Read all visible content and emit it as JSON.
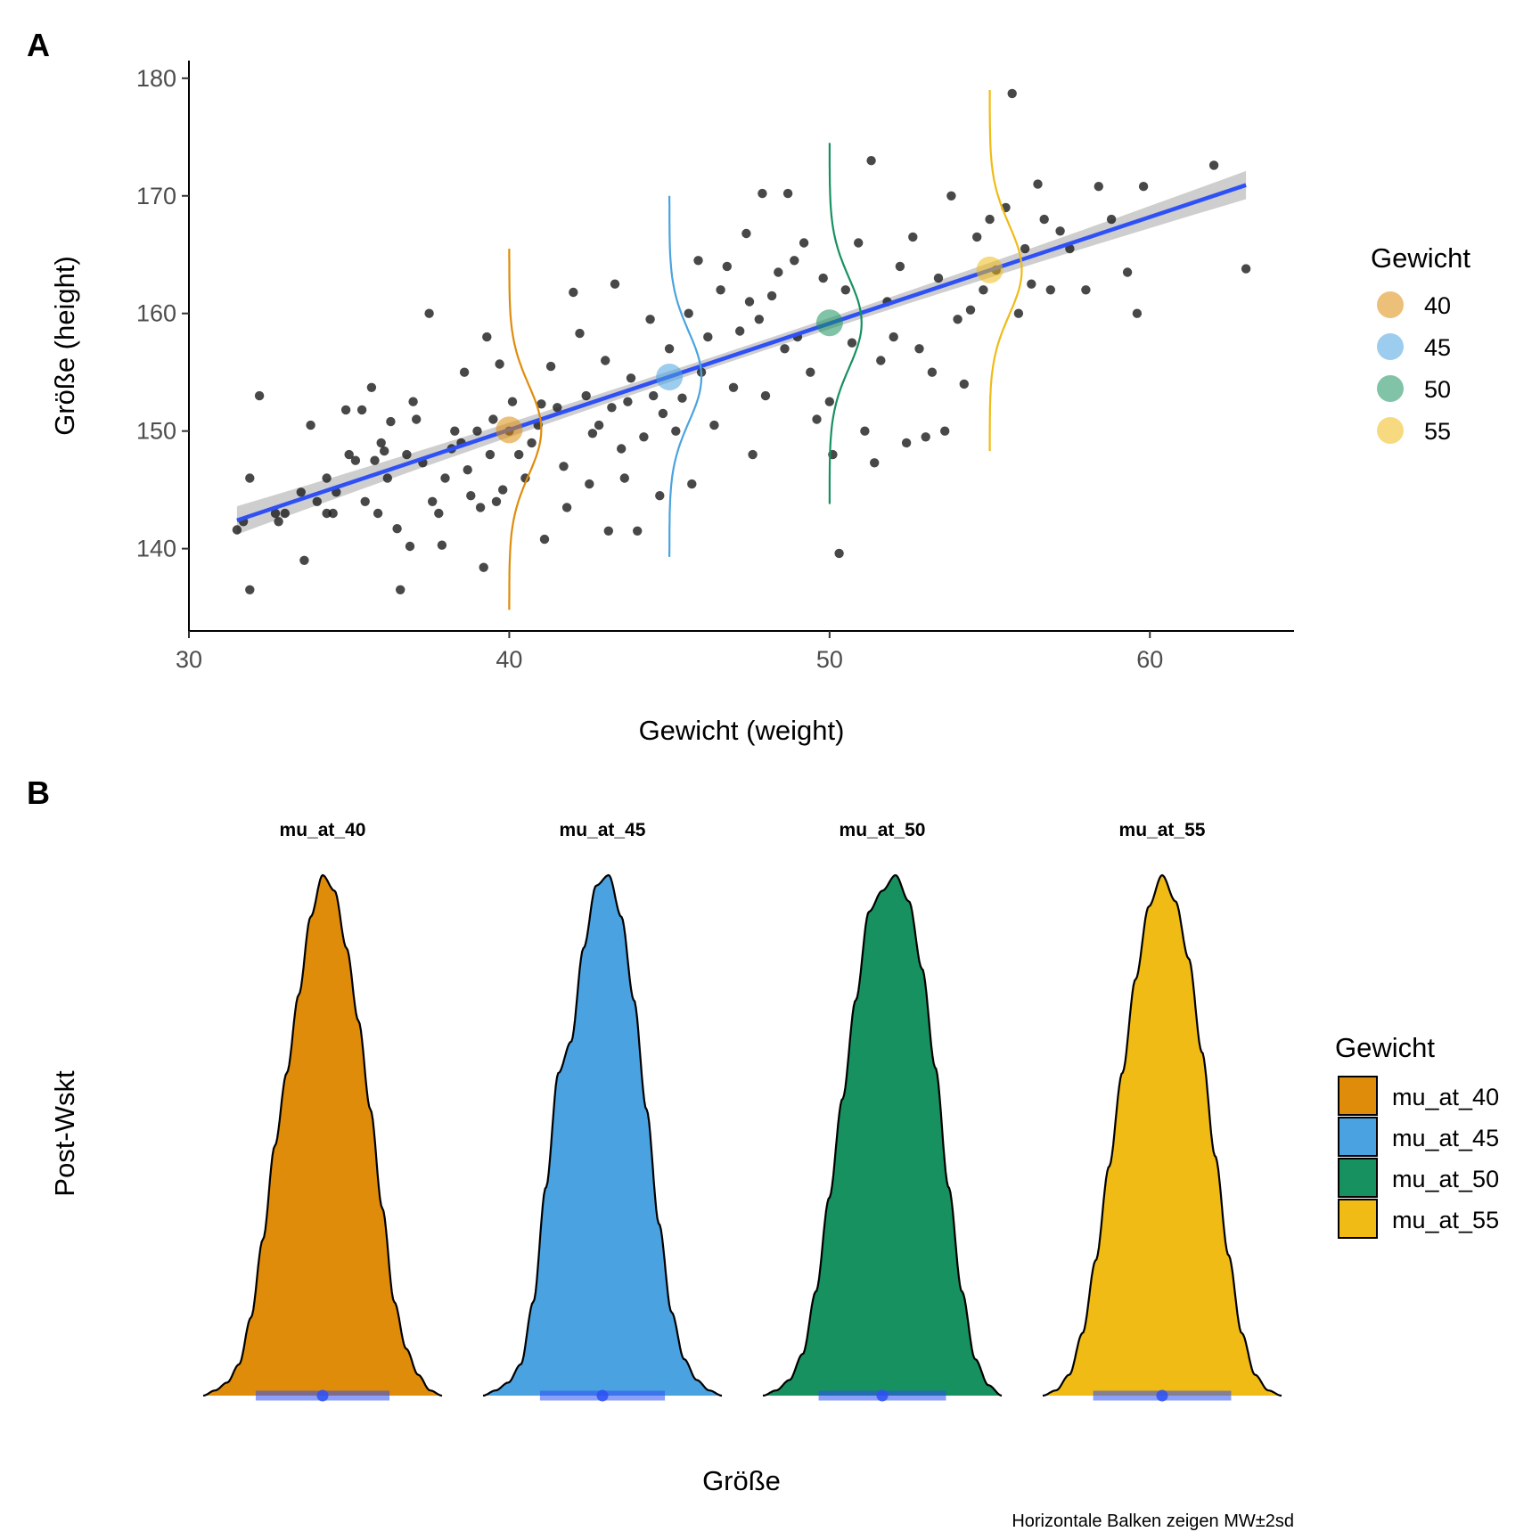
{
  "panel_a": {
    "letter": "A",
    "xlabel": "Gewicht (weight)",
    "ylabel": "Größe (height)",
    "legend_title": "Gewicht"
  },
  "panel_b": {
    "letter": "B",
    "xlabel": "Größe",
    "ylabel": "Post-Wskt",
    "legend_title": "Gewicht",
    "caption": "Horizontale Balken zeigen MW±2sd"
  },
  "colors": {
    "mu_40": "#DF8C0B",
    "mu_45": "#4AA3E0",
    "mu_50": "#17915F",
    "mu_55": "#F0BB15",
    "regression": "#2E50F5",
    "ribbon": "#BEBEBE",
    "points": "#1a1a1a"
  },
  "chart_data": [
    {
      "type": "scatter",
      "panel": "A",
      "xlabel": "Gewicht (weight)",
      "ylabel": "Größe (height)",
      "xlim": [
        30,
        64.5
      ],
      "ylim": [
        133,
        181.5
      ],
      "xticks": [
        30,
        40,
        50,
        60
      ],
      "yticks": [
        140,
        150,
        160,
        170,
        180
      ],
      "legend": {
        "title": "Gewicht",
        "position": "right",
        "entries": [
          "40",
          "45",
          "50",
          "55"
        ]
      },
      "regression": {
        "intercept": 113.9,
        "slope": 0.905,
        "x_range": [
          31.5,
          63.0
        ],
        "ci_halfwidth_ends": 1.2,
        "ci_halfwidth_center": 0.45
      },
      "mu_points": [
        {
          "weight": 40,
          "height": 150.1
        },
        {
          "weight": 45,
          "height": 154.6
        },
        {
          "weight": 50,
          "height": 159.2
        },
        {
          "weight": 55,
          "height": 163.7
        }
      ],
      "likelihood_curves": [
        {
          "weight": 40,
          "center": 150.1,
          "ymin": 134.8,
          "ymax": 165.5
        },
        {
          "weight": 45,
          "center": 154.6,
          "ymin": 139.3,
          "ymax": 170.0
        },
        {
          "weight": 50,
          "center": 159.2,
          "ymin": 143.8,
          "ymax": 174.5
        },
        {
          "weight": 55,
          "center": 163.7,
          "ymin": 148.3,
          "ymax": 179.0
        }
      ],
      "points": [
        [
          31.5,
          141.6
        ],
        [
          31.7,
          142.3
        ],
        [
          31.9,
          136.5
        ],
        [
          31.9,
          146.0
        ],
        [
          32.2,
          153.0
        ],
        [
          32.7,
          143.0
        ],
        [
          32.8,
          142.3
        ],
        [
          33.0,
          143.0
        ],
        [
          33.5,
          144.8
        ],
        [
          33.6,
          139.0
        ],
        [
          33.8,
          150.5
        ],
        [
          34.0,
          144.0
        ],
        [
          34.3,
          146.0
        ],
        [
          34.3,
          143.0
        ],
        [
          34.5,
          143.0
        ],
        [
          34.6,
          144.8
        ],
        [
          34.9,
          151.8
        ],
        [
          35.0,
          148.0
        ],
        [
          35.2,
          147.5
        ],
        [
          35.4,
          151.8
        ],
        [
          35.5,
          144.0
        ],
        [
          35.7,
          153.7
        ],
        [
          35.8,
          147.5
        ],
        [
          35.9,
          143.0
        ],
        [
          36.0,
          149.0
        ],
        [
          36.1,
          148.3
        ],
        [
          36.2,
          146.0
        ],
        [
          36.3,
          150.8
        ],
        [
          36.5,
          141.7
        ],
        [
          36.6,
          136.5
        ],
        [
          36.8,
          148.0
        ],
        [
          36.9,
          140.2
        ],
        [
          37.0,
          152.5
        ],
        [
          37.1,
          151.0
        ],
        [
          37.3,
          147.3
        ],
        [
          37.5,
          160.0
        ],
        [
          37.6,
          144.0
        ],
        [
          37.8,
          143.0
        ],
        [
          37.9,
          140.3
        ],
        [
          38.0,
          146.0
        ],
        [
          38.2,
          148.5
        ],
        [
          38.3,
          150.0
        ],
        [
          38.5,
          149.0
        ],
        [
          38.6,
          155.0
        ],
        [
          38.7,
          146.7
        ],
        [
          38.8,
          144.5
        ],
        [
          39.0,
          150.0
        ],
        [
          39.1,
          143.5
        ],
        [
          39.2,
          138.4
        ],
        [
          39.3,
          158.0
        ],
        [
          39.4,
          148.0
        ],
        [
          39.5,
          151.0
        ],
        [
          39.6,
          144.0
        ],
        [
          39.7,
          155.7
        ],
        [
          39.8,
          145.0
        ],
        [
          40.0,
          150.0
        ],
        [
          40.1,
          152.5
        ],
        [
          40.3,
          148.0
        ],
        [
          40.5,
          146.0
        ],
        [
          40.7,
          149.0
        ],
        [
          40.9,
          150.5
        ],
        [
          41.0,
          152.3
        ],
        [
          41.1,
          140.8
        ],
        [
          41.3,
          155.5
        ],
        [
          41.5,
          152.0
        ],
        [
          41.7,
          147.0
        ],
        [
          41.8,
          143.5
        ],
        [
          42.0,
          161.8
        ],
        [
          42.2,
          158.3
        ],
        [
          42.4,
          153.0
        ],
        [
          42.5,
          145.5
        ],
        [
          42.6,
          149.8
        ],
        [
          42.8,
          150.5
        ],
        [
          43.0,
          156.0
        ],
        [
          43.1,
          141.5
        ],
        [
          43.2,
          152.0
        ],
        [
          43.3,
          162.5
        ],
        [
          43.5,
          148.5
        ],
        [
          43.6,
          146.0
        ],
        [
          43.7,
          152.5
        ],
        [
          43.8,
          154.5
        ],
        [
          44.0,
          141.5
        ],
        [
          44.2,
          149.5
        ],
        [
          44.4,
          159.5
        ],
        [
          44.5,
          153.0
        ],
        [
          44.7,
          144.5
        ],
        [
          44.8,
          151.5
        ],
        [
          45.0,
          157.0
        ],
        [
          45.2,
          150.0
        ],
        [
          45.4,
          152.8
        ],
        [
          45.6,
          160.0
        ],
        [
          45.7,
          145.5
        ],
        [
          45.9,
          164.5
        ],
        [
          46.0,
          155.0
        ],
        [
          46.2,
          158.0
        ],
        [
          46.4,
          150.5
        ],
        [
          46.6,
          162.0
        ],
        [
          46.8,
          164.0
        ],
        [
          47.0,
          153.7
        ],
        [
          47.2,
          158.5
        ],
        [
          47.4,
          166.8
        ],
        [
          47.5,
          161.0
        ],
        [
          47.6,
          148.0
        ],
        [
          47.8,
          159.5
        ],
        [
          47.9,
          170.2
        ],
        [
          48.0,
          153.0
        ],
        [
          48.2,
          161.5
        ],
        [
          48.4,
          163.5
        ],
        [
          48.6,
          157.0
        ],
        [
          48.7,
          170.2
        ],
        [
          48.9,
          164.5
        ],
        [
          49.0,
          158.0
        ],
        [
          49.2,
          166.0
        ],
        [
          49.4,
          155.0
        ],
        [
          49.6,
          151.0
        ],
        [
          49.8,
          163.0
        ],
        [
          50.0,
          152.5
        ],
        [
          50.1,
          148.0
        ],
        [
          50.3,
          139.6
        ],
        [
          50.5,
          162.0
        ],
        [
          50.7,
          157.5
        ],
        [
          50.9,
          166.0
        ],
        [
          51.1,
          150.0
        ],
        [
          51.3,
          173.0
        ],
        [
          51.4,
          147.3
        ],
        [
          51.6,
          156.0
        ],
        [
          51.8,
          161.0
        ],
        [
          52.0,
          158.0
        ],
        [
          52.2,
          164.0
        ],
        [
          52.4,
          149.0
        ],
        [
          52.6,
          166.5
        ],
        [
          52.8,
          157.0
        ],
        [
          53.0,
          149.5
        ],
        [
          53.2,
          155.0
        ],
        [
          53.4,
          163.0
        ],
        [
          53.6,
          150.0
        ],
        [
          53.8,
          170.0
        ],
        [
          54.0,
          159.5
        ],
        [
          54.2,
          154.0
        ],
        [
          54.4,
          160.3
        ],
        [
          54.6,
          166.5
        ],
        [
          54.8,
          162.0
        ],
        [
          55.0,
          168.0
        ],
        [
          55.2,
          163.7
        ],
        [
          55.5,
          169.0
        ],
        [
          55.7,
          178.7
        ],
        [
          55.9,
          160.0
        ],
        [
          56.1,
          165.5
        ],
        [
          56.3,
          162.5
        ],
        [
          56.5,
          171.0
        ],
        [
          56.7,
          168.0
        ],
        [
          56.9,
          162.0
        ],
        [
          57.2,
          167.0
        ],
        [
          57.5,
          165.5
        ],
        [
          58.0,
          162.0
        ],
        [
          58.4,
          170.8
        ],
        [
          58.8,
          168.0
        ],
        [
          59.3,
          163.5
        ],
        [
          59.6,
          160.0
        ],
        [
          59.8,
          170.8
        ],
        [
          62.0,
          172.6
        ],
        [
          63.0,
          163.8
        ]
      ]
    },
    {
      "type": "area",
      "panel": "B",
      "xlabel": "Größe",
      "ylabel": "Post-Wskt",
      "legend": {
        "title": "Gewicht",
        "position": "right",
        "entries": [
          "mu_at_40",
          "mu_at_45",
          "mu_at_50",
          "mu_at_55"
        ]
      },
      "facets": [
        {
          "label": "mu_at_40",
          "mean": 150.1,
          "sd": 0.42,
          "xlim": [
            148.6,
            151.6
          ],
          "density_profile": [
            0.0,
            0.01,
            0.025,
            0.06,
            0.15,
            0.3,
            0.48,
            0.62,
            0.77,
            0.92,
            1.0,
            0.97,
            0.86,
            0.72,
            0.55,
            0.36,
            0.18,
            0.09,
            0.04,
            0.01,
            0.0
          ]
        },
        {
          "label": "mu_at_45",
          "mean": 154.6,
          "sd": 0.34,
          "xlim": [
            153.3,
            155.9
          ],
          "density_profile": [
            0.0,
            0.01,
            0.025,
            0.06,
            0.18,
            0.4,
            0.62,
            0.68,
            0.86,
            0.98,
            1.0,
            0.92,
            0.76,
            0.55,
            0.33,
            0.16,
            0.07,
            0.03,
            0.01,
            0.0
          ]
        },
        {
          "label": "mu_at_50",
          "mean": 159.2,
          "sd": 0.4,
          "xlim": [
            157.7,
            160.7
          ],
          "density_profile": [
            0.0,
            0.01,
            0.03,
            0.08,
            0.2,
            0.38,
            0.57,
            0.76,
            0.93,
            0.97,
            1.0,
            0.95,
            0.82,
            0.63,
            0.4,
            0.2,
            0.07,
            0.02,
            0.0
          ]
        },
        {
          "label": "mu_at_55",
          "mean": 163.7,
          "sd": 0.52,
          "xlim": [
            161.9,
            165.5
          ],
          "density_profile": [
            0.0,
            0.01,
            0.04,
            0.12,
            0.26,
            0.44,
            0.62,
            0.8,
            0.94,
            1.0,
            0.95,
            0.84,
            0.66,
            0.46,
            0.27,
            0.12,
            0.04,
            0.01,
            0.0
          ]
        }
      ]
    }
  ]
}
